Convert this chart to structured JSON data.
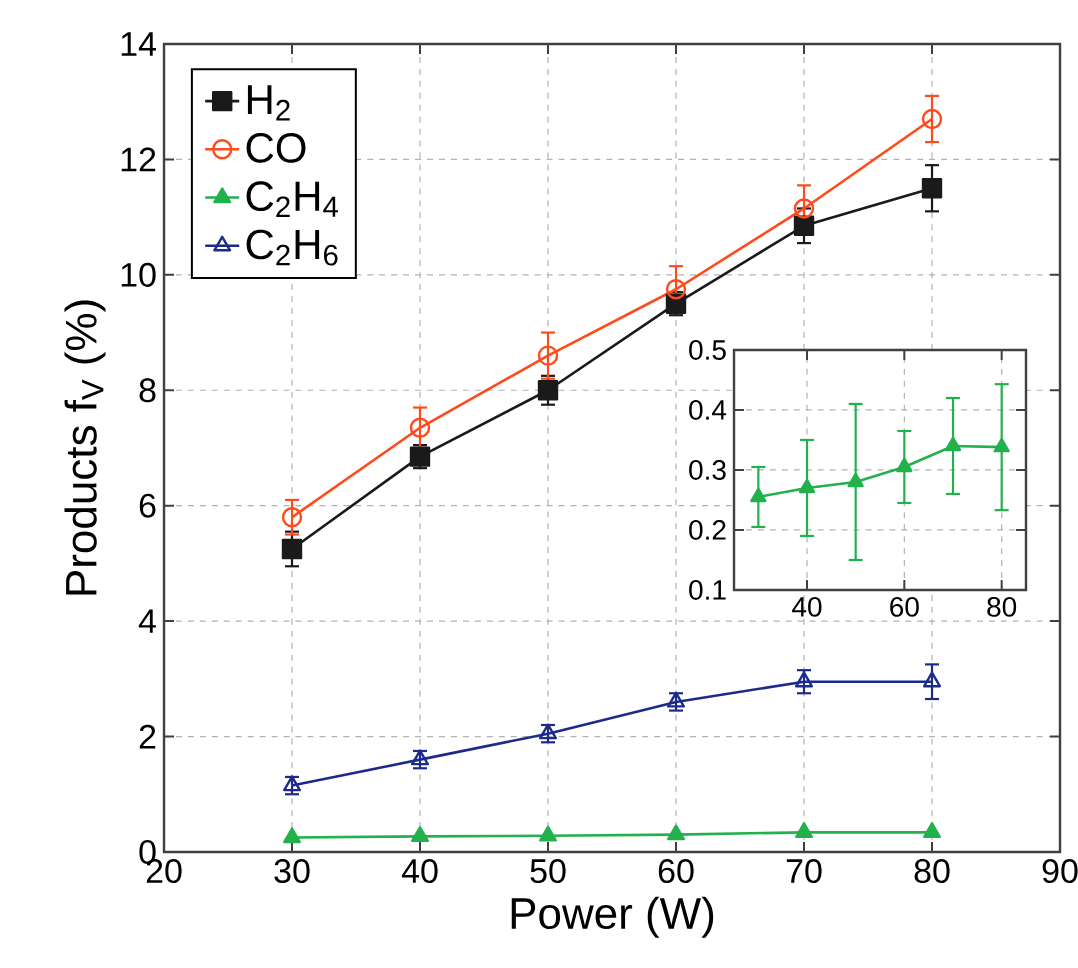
{
  "chart_data": [
    {
      "type": "line",
      "xlabel": "Power (W)",
      "ylabel": "Products f$_{V}$ (%)",
      "x": [
        30,
        40,
        50,
        60,
        70,
        80
      ],
      "xlim": [
        20,
        90
      ],
      "ylim": [
        0,
        14
      ],
      "xticks": [
        20,
        30,
        40,
        50,
        60,
        70,
        80,
        90
      ],
      "yticks": [
        0,
        2,
        4,
        6,
        8,
        10,
        12,
        14
      ],
      "grid": true,
      "legend": "top left",
      "series": [
        {
          "name": "H$_{2}$",
          "color": "#1a1a1a",
          "marker": "square",
          "values": [
            5.25,
            6.85,
            8.0,
            9.5,
            10.85,
            11.5
          ],
          "errors": [
            0.3,
            0.2,
            0.25,
            0.2,
            0.3,
            0.4
          ]
        },
        {
          "name": "CO",
          "color": "#ff4a1c",
          "marker": "circle",
          "values": [
            5.8,
            7.35,
            8.6,
            9.75,
            11.15,
            12.7
          ],
          "errors": [
            0.3,
            0.35,
            0.4,
            0.4,
            0.4,
            0.4
          ]
        },
        {
          "name": "C$_{2}$H$_{4}$",
          "color": "#22b14c",
          "marker": "triangle",
          "values": [
            0.25,
            0.27,
            0.28,
            0.3,
            0.34,
            0.34
          ]
        },
        {
          "name": "C$_{2}$H$_{6}$",
          "color": "#1c2a8c",
          "marker": "triangle-down",
          "values": [
            1.15,
            1.6,
            2.05,
            2.6,
            2.95,
            2.95
          ],
          "errors": [
            0.15,
            0.15,
            0.15,
            0.15,
            0.2,
            0.3
          ]
        }
      ]
    },
    {
      "type": "line",
      "x": [
        30,
        40,
        50,
        60,
        70,
        80
      ],
      "xlim": [
        25,
        85
      ],
      "ylim": [
        0.1,
        0.5
      ],
      "xticks": [
        40,
        60,
        80
      ],
      "yticks": [
        0.1,
        0.2,
        0.3,
        0.4,
        0.5
      ],
      "grid": true,
      "series": [
        {
          "color": "#22b14c",
          "marker": "triangle",
          "values": [
            0.255,
            0.27,
            0.28,
            0.305,
            0.34,
            0.338
          ],
          "errors": [
            0.05,
            0.08,
            0.13,
            0.06,
            0.08,
            0.105
          ]
        }
      ]
    }
  ]
}
